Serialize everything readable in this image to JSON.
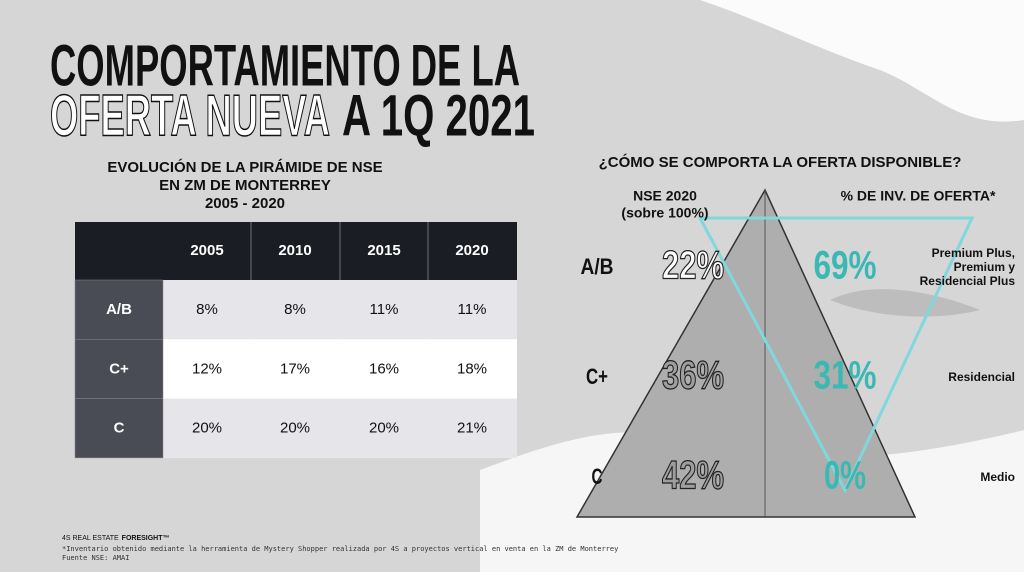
{
  "title": {
    "line1": "COMPORTAMIENTO DE LA",
    "line2_outline": "OFERTA NUEVA",
    "line2_solid": "A 1Q 2021"
  },
  "left": {
    "heading": [
      "EVOLUCIÓN DE LA PIRÁMIDE DE NSE",
      "EN ZM DE MONTERREY",
      "2005 - 2020"
    ]
  },
  "table": {
    "columns": [
      "2005",
      "2010",
      "2015",
      "2020"
    ],
    "rows": [
      {
        "label": "A/B",
        "cells": [
          "8%",
          "8%",
          "11%",
          "11%"
        ]
      },
      {
        "label": "C+",
        "cells": [
          "12%",
          "17%",
          "16%",
          "18%"
        ]
      },
      {
        "label": "C",
        "cells": [
          "20%",
          "20%",
          "20%",
          "21%"
        ]
      }
    ]
  },
  "right": {
    "question": "¿CÓMO SE COMPORTA LA OFERTA DISPONIBLE?",
    "nse_heading": [
      "NSE 2020",
      "(sobre 100%)"
    ],
    "offer_heading": "% DE INV. DE OFERTA*",
    "levels": [
      {
        "label": "A/B",
        "nse": "22%",
        "offer": "69%",
        "segment": [
          "Premium Plus,",
          "Premium y",
          "Residencial Plus"
        ]
      },
      {
        "label": "C+",
        "nse": "36%",
        "offer": "31%",
        "segment": [
          "Residencial"
        ]
      },
      {
        "label": "C",
        "nse": "42%",
        "offer": "0%",
        "segment": [
          "Medio"
        ]
      }
    ]
  },
  "footer": {
    "brand": "4S REAL ESTATE",
    "brand_bold": "FORESIGHT™",
    "notes": [
      "*Inventario obtenido mediante la herramienta de Mystery Shopper realizada por 4S a proyectos vertical en venta en la ZM de Monterrey",
      "Fuente NSE: AMAI"
    ]
  }
}
